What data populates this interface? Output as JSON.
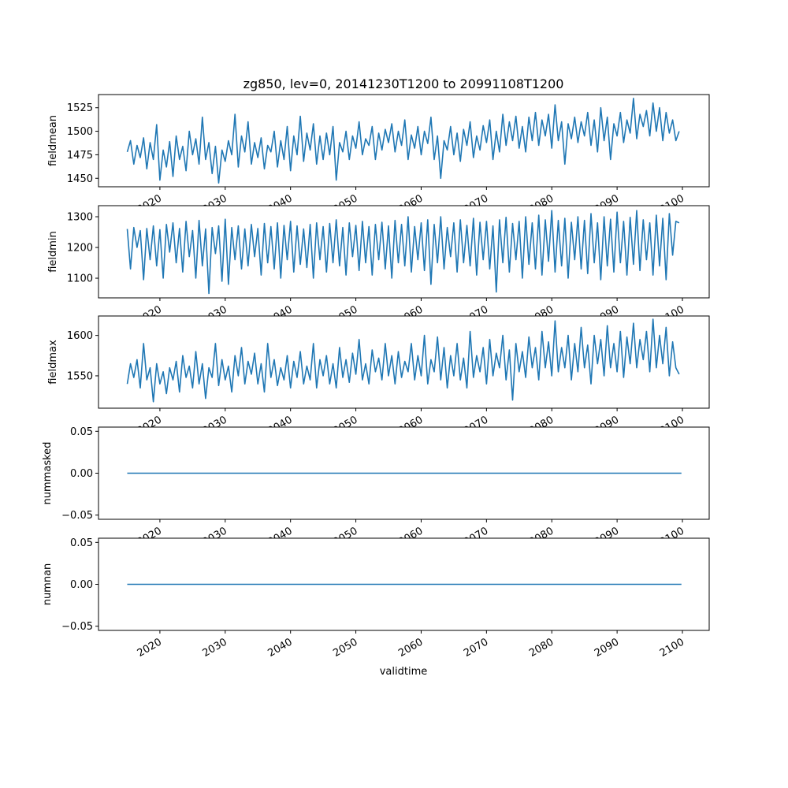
{
  "chart_data": {
    "type": "line",
    "title": "zg850, lev=0, 20141230T1200 to 20991108T1200",
    "xlabel": "validtime",
    "x_start": 2015.0,
    "x_step": 0.5,
    "xlim": [
      2010.6,
      2104.1
    ],
    "x_ticks": [
      2020,
      2030,
      2040,
      2050,
      2060,
      2070,
      2080,
      2090,
      2100
    ],
    "x_tick_labels": [
      "2020",
      "2030",
      "2040",
      "2050",
      "2060",
      "2070",
      "2080",
      "2090",
      "2100"
    ],
    "line_color": "#1f77b4",
    "grid": false,
    "panels": [
      {
        "ylabel": "fieldmean",
        "ylim": [
          1441,
          1539
        ],
        "y_ticks": [
          1450,
          1475,
          1500,
          1525
        ],
        "y_tick_labels": [
          "1450",
          "1475",
          "1500",
          "1525"
        ],
        "values": [
          1478,
          1490,
          1465,
          1485,
          1472,
          1493,
          1460,
          1488,
          1470,
          1507,
          1448,
          1480,
          1462,
          1489,
          1452,
          1495,
          1470,
          1484,
          1458,
          1500,
          1475,
          1492,
          1465,
          1515,
          1470,
          1488,
          1455,
          1484,
          1445,
          1480,
          1468,
          1490,
          1475,
          1518,
          1462,
          1495,
          1478,
          1510,
          1465,
          1488,
          1472,
          1493,
          1460,
          1485,
          1478,
          1500,
          1462,
          1490,
          1470,
          1505,
          1458,
          1495,
          1475,
          1516,
          1468,
          1498,
          1480,
          1508,
          1465,
          1495,
          1470,
          1498,
          1475,
          1505,
          1448,
          1488,
          1478,
          1500,
          1470,
          1495,
          1482,
          1510,
          1475,
          1492,
          1485,
          1505,
          1470,
          1498,
          1480,
          1502,
          1488,
          1508,
          1478,
          1500,
          1485,
          1512,
          1470,
          1496,
          1482,
          1505,
          1475,
          1500,
          1487,
          1515,
          1470,
          1495,
          1450,
          1490,
          1480,
          1505,
          1475,
          1498,
          1468,
          1502,
          1485,
          1510,
          1472,
          1495,
          1480,
          1506,
          1488,
          1512,
          1470,
          1500,
          1478,
          1518,
          1485,
          1510,
          1490,
          1516,
          1482,
          1505,
          1478,
          1515,
          1490,
          1520,
          1485,
          1512,
          1495,
          1518,
          1482,
          1528,
          1490,
          1510,
          1465,
          1508,
          1492,
          1515,
          1488,
          1510,
          1495,
          1520,
          1485,
          1512,
          1478,
          1525,
          1490,
          1515,
          1470,
          1508,
          1495,
          1520,
          1488,
          1512,
          1498,
          1535,
          1492,
          1518,
          1505,
          1522,
          1495,
          1530,
          1500,
          1525,
          1490,
          1520,
          1498,
          1512,
          1490,
          1500
        ]
      },
      {
        "ylabel": "fieldmin",
        "ylim": [
          1036,
          1336
        ],
        "y_ticks": [
          1100,
          1200,
          1300
        ],
        "y_tick_labels": [
          "1100",
          "1200",
          "1300"
        ],
        "values": [
          1260,
          1130,
          1265,
          1200,
          1255,
          1095,
          1262,
          1160,
          1270,
          1140,
          1258,
          1100,
          1275,
          1185,
          1280,
          1150,
          1262,
          1120,
          1285,
          1170,
          1255,
          1100,
          1288,
          1140,
          1260,
          1050,
          1265,
          1180,
          1270,
          1090,
          1292,
          1080,
          1265,
          1160,
          1270,
          1130,
          1260,
          1140,
          1275,
          1170,
          1262,
          1110,
          1278,
          1150,
          1268,
          1130,
          1280,
          1100,
          1272,
          1160,
          1285,
          1120,
          1270,
          1145,
          1260,
          1135,
          1275,
          1100,
          1280,
          1160,
          1268,
          1120,
          1278,
          1150,
          1290,
          1140,
          1265,
          1110,
          1280,
          1170,
          1272,
          1125,
          1285,
          1150,
          1268,
          1110,
          1275,
          1160,
          1282,
          1130,
          1270,
          1100,
          1288,
          1150,
          1275,
          1140,
          1300,
          1120,
          1268,
          1160,
          1280,
          1125,
          1290,
          1080,
          1275,
          1150,
          1300,
          1130,
          1265,
          1170,
          1280,
          1120,
          1290,
          1150,
          1272,
          1140,
          1295,
          1110,
          1282,
          1160,
          1285,
          1130,
          1270,
          1055,
          1290,
          1150,
          1298,
          1120,
          1278,
          1160,
          1285,
          1100,
          1300,
          1145,
          1280,
          1130,
          1305,
          1110,
          1290,
          1155,
          1320,
          1120,
          1288,
          1140,
          1295,
          1100,
          1282,
          1160,
          1300,
          1130,
          1288,
          1115,
          1310,
          1150,
          1280,
          1095,
          1300,
          1140,
          1292,
          1120,
          1315,
          1150,
          1285,
          1110,
          1298,
          1145,
          1320,
          1125,
          1290,
          1160,
          1280,
          1110,
          1305,
          1140,
          1295,
          1095,
          1310,
          1175,
          1285,
          1280
        ]
      },
      {
        "ylabel": "fieldmax",
        "ylim": [
          1510,
          1624
        ],
        "y_ticks": [
          1550,
          1600
        ],
        "y_tick_labels": [
          "1550",
          "1600"
        ],
        "values": [
          1540,
          1565,
          1548,
          1570,
          1535,
          1590,
          1545,
          1560,
          1518,
          1565,
          1540,
          1555,
          1528,
          1560,
          1545,
          1568,
          1530,
          1575,
          1548,
          1562,
          1535,
          1580,
          1540,
          1565,
          1522,
          1560,
          1548,
          1590,
          1538,
          1570,
          1545,
          1562,
          1530,
          1575,
          1550,
          1585,
          1540,
          1568,
          1552,
          1578,
          1540,
          1565,
          1530,
          1590,
          1548,
          1570,
          1538,
          1560,
          1545,
          1575,
          1535,
          1568,
          1548,
          1580,
          1540,
          1562,
          1545,
          1590,
          1535,
          1570,
          1550,
          1575,
          1540,
          1565,
          1535,
          1585,
          1548,
          1570,
          1542,
          1578,
          1552,
          1595,
          1545,
          1565,
          1540,
          1582,
          1555,
          1572,
          1545,
          1590,
          1550,
          1575,
          1540,
          1580,
          1548,
          1568,
          1555,
          1590,
          1545,
          1575,
          1550,
          1600,
          1540,
          1570,
          1555,
          1598,
          1545,
          1585,
          1535,
          1575,
          1550,
          1590,
          1545,
          1572,
          1535,
          1605,
          1548,
          1575,
          1555,
          1585,
          1540,
          1595,
          1550,
          1578,
          1560,
          1600,
          1545,
          1582,
          1520,
          1590,
          1555,
          1580,
          1548,
          1598,
          1560,
          1585,
          1545,
          1605,
          1560,
          1592,
          1550,
          1618,
          1555,
          1585,
          1560,
          1600,
          1545,
          1590,
          1555,
          1610,
          1560,
          1588,
          1540,
          1600,
          1565,
          1595,
          1550,
          1612,
          1560,
          1590,
          1555,
          1605,
          1548,
          1598,
          1565,
          1615,
          1560,
          1595,
          1570,
          1605,
          1555,
          1620,
          1560,
          1600,
          1565,
          1610,
          1550,
          1592,
          1560,
          1552
        ]
      },
      {
        "ylabel": "nummasked",
        "ylim": [
          -0.055,
          0.055
        ],
        "y_ticks": [
          -0.05,
          0.0,
          0.05
        ],
        "y_tick_labels": [
          "−0.05",
          "0.00",
          "0.05"
        ],
        "constant_value": 0
      },
      {
        "ylabel": "numnan",
        "ylim": [
          -0.055,
          0.055
        ],
        "y_ticks": [
          -0.05,
          0.0,
          0.05
        ],
        "y_tick_labels": [
          "−0.05",
          "0.00",
          "0.05"
        ],
        "constant_value": 0
      }
    ]
  }
}
